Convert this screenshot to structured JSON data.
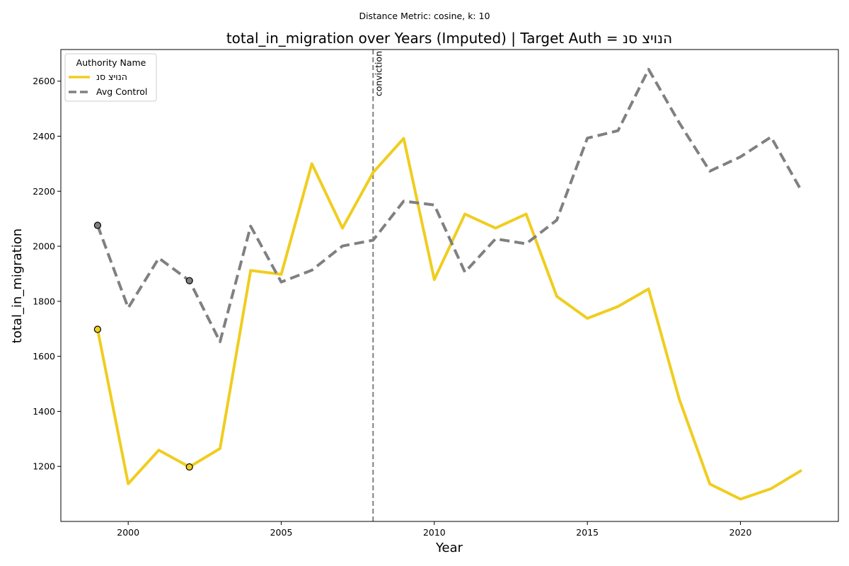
{
  "chart_data": {
    "type": "line",
    "suptitle": "Distance Metric: cosine, k: 10",
    "title": "total_in_migration over Years (Imputed) | Target Auth = הנויצ סנ",
    "xlabel": "Year",
    "ylabel": "total_in_migration",
    "xlim": [
      1997.8,
      2023.2
    ],
    "ylim": [
      1000,
      2715
    ],
    "xticks": [
      2000,
      2005,
      2010,
      2015,
      2020
    ],
    "yticks": [
      1200,
      1400,
      1600,
      1800,
      2000,
      2200,
      2400,
      2600
    ],
    "grid": false,
    "legend": {
      "title": "Authority Name",
      "placement": "top-left"
    },
    "x": [
      1999,
      2000,
      2001,
      2002,
      2003,
      2004,
      2005,
      2006,
      2007,
      2008,
      2009,
      2010,
      2011,
      2012,
      2013,
      2014,
      2015,
      2016,
      2017,
      2018,
      2019,
      2020,
      2021,
      2022
    ],
    "series": [
      {
        "name": "הנויצ סנ",
        "color": "#f0cd20",
        "style": "solid",
        "values": [
          1698,
          1137,
          1259,
          1198,
          1265,
          1912,
          1898,
          2300,
          2066,
          2268,
          2392,
          1879,
          2117,
          2066,
          2117,
          1818,
          1738,
          1781,
          1845,
          1445,
          1136,
          1081,
          1119,
          1186
        ],
        "imputed_markers": [
          {
            "x": 1999,
            "y": 1698
          },
          {
            "x": 2002,
            "y": 1198
          }
        ]
      },
      {
        "name": "Avg Control",
        "color": "#808080",
        "style": "dashed",
        "values": [
          2076,
          1776,
          1957,
          1875,
          1653,
          2073,
          1870,
          1913,
          2001,
          2022,
          2164,
          2150,
          1906,
          2027,
          2009,
          2095,
          2393,
          2420,
          2643,
          2449,
          2273,
          2325,
          2397,
          2200
        ],
        "imputed_markers": [
          {
            "x": 1999,
            "y": 2076
          },
          {
            "x": 2002,
            "y": 1875
          }
        ]
      }
    ],
    "vlines": [
      {
        "x": 2008,
        "label": "conviction",
        "color": "#808080",
        "style": "dashed"
      }
    ]
  }
}
